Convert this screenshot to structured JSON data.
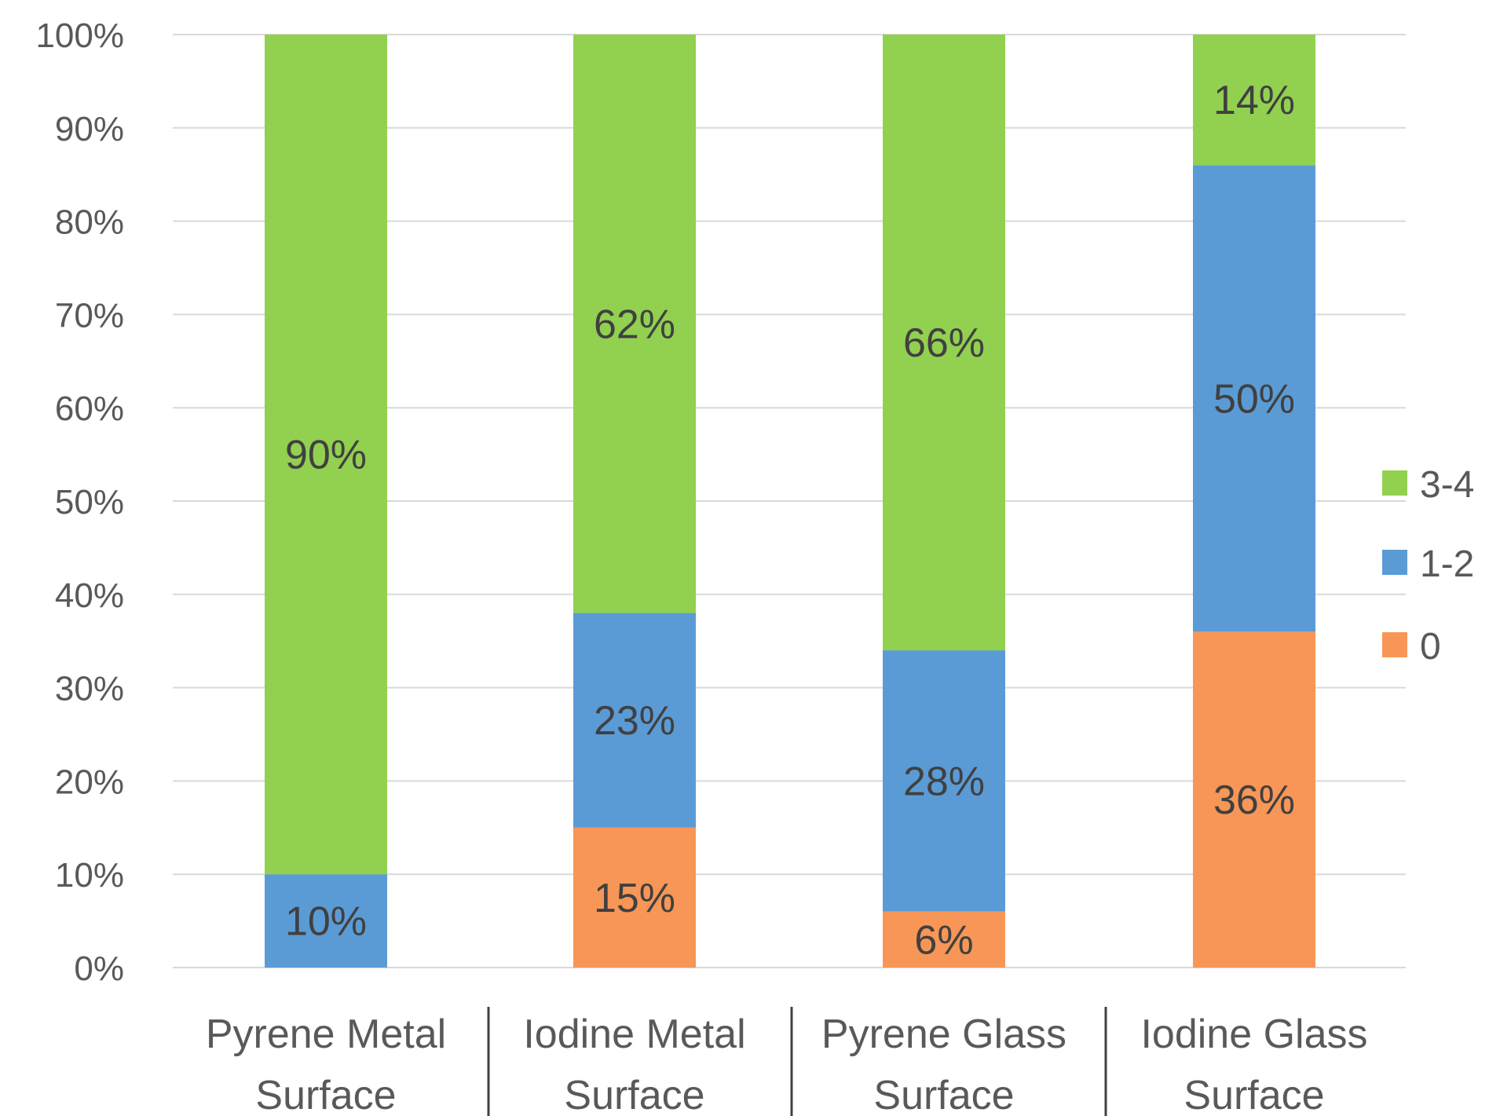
{
  "chart_data": {
    "type": "bar",
    "stacked": true,
    "categories": [
      [
        "Pyrene Metal",
        "Surface"
      ],
      [
        "Iodine Metal",
        "Surface"
      ],
      [
        "Pyrene Glass",
        "Surface"
      ],
      [
        "Iodine Glass",
        "Surface"
      ]
    ],
    "series": [
      {
        "name": "0",
        "color": "#F79656",
        "values": [
          0,
          15,
          6,
          36
        ],
        "labels": [
          "",
          "15%",
          "6%",
          "36%"
        ]
      },
      {
        "name": "1-2",
        "color": "#5B9BD5",
        "values": [
          10,
          23,
          28,
          50
        ],
        "labels": [
          "10%",
          "23%",
          "28%",
          "50%"
        ]
      },
      {
        "name": "3-4",
        "color": "#92D050",
        "values": [
          90,
          62,
          66,
          14
        ],
        "labels": [
          "90%",
          "62%",
          "66%",
          "14%"
        ]
      }
    ],
    "legend_order": [
      "3-4",
      "1-2",
      "0"
    ],
    "legend_position": "right",
    "ylim": [
      0,
      100
    ],
    "yticks": [
      "0%",
      "10%",
      "20%",
      "30%",
      "40%",
      "50%",
      "60%",
      "70%",
      "80%",
      "90%",
      "100%"
    ],
    "grid": true,
    "title": "",
    "xlabel": "",
    "ylabel": ""
  }
}
